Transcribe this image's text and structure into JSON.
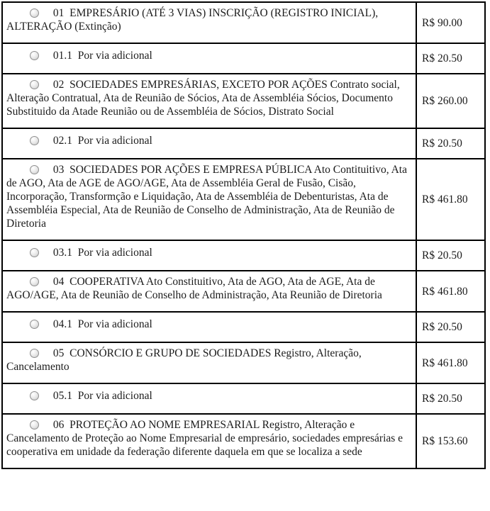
{
  "page": {
    "background_color": "#ffffff",
    "border_color": "#000000",
    "text_color": "#1b1b1b"
  },
  "icons": {
    "radio": "radio-button-unselected"
  },
  "fee_table": {
    "rows": [
      {
        "kind": "main",
        "label": "01  EMPRESÁRIO (ATÉ 3 VIAS) INSCRIÇÃO (REGISTRO INICIAL), ALTERAÇÃO (Extinção)",
        "price": "R$ 90.00"
      },
      {
        "kind": "sub",
        "label": "01.1  Por via adicional",
        "price": "R$ 20.50"
      },
      {
        "kind": "main",
        "label": "02  SOCIEDADES EMPRESÁRIAS, EXCETO POR AÇÕES Contrato social, Alteração Contratual, Ata de Reunião de Sócios, Ata de Assembléia Sócios, Documento Substituido da Atade Reunião ou de Assembléia de Sócios, Distrato Social",
        "price": "R$ 260.00"
      },
      {
        "kind": "sub",
        "label": "02.1  Por via adicional",
        "price": "R$ 20.50"
      },
      {
        "kind": "main",
        "label": "03  SOCIEDADES POR AÇÕES E EMPRESA PÚBLICA Ato Contituitivo, Ata de AGO, Ata de AGE de AGO/AGE, Ata de Assembléia Geral de Fusão, Cisão, Incorporação, Transformção e Liquidação, Ata de Assembléia de Debenturistas, Ata de Assembléia Especial, Ata de Reunião de Conselho de Administração, Ata de Reunião de Diretoria",
        "price": "R$ 461.80"
      },
      {
        "kind": "sub",
        "label": "03.1  Por via adicional",
        "price": "R$ 20.50"
      },
      {
        "kind": "main",
        "label": "04  COOPERATIVA Ato Constituitivo, Ata de AGO, Ata de AGE, Ata de AGO/AGE, Ata de Reunião de Conselho de Administração, Ata Reunião de Diretoria",
        "price": "R$ 461.80"
      },
      {
        "kind": "sub",
        "label": "04.1  Por via adicional",
        "price": "R$ 20.50"
      },
      {
        "kind": "main",
        "label": "05  CONSÓRCIO E GRUPO DE SOCIEDADES Registro, Alteração, Cancelamento",
        "price": "R$ 461.80"
      },
      {
        "kind": "sub",
        "label": "05.1  Por via adicional",
        "price": "R$ 20.50"
      },
      {
        "kind": "main",
        "label": "06  PROTEÇÃO AO NOME EMPRESARIAL Registro, Alteração e Cancelamento de Proteção ao Nome Empresarial de empresário, sociedades empresárias e cooperativa em unidade da federação diferente daquela em que se localiza a sede",
        "price": "R$ 153.60"
      }
    ]
  }
}
